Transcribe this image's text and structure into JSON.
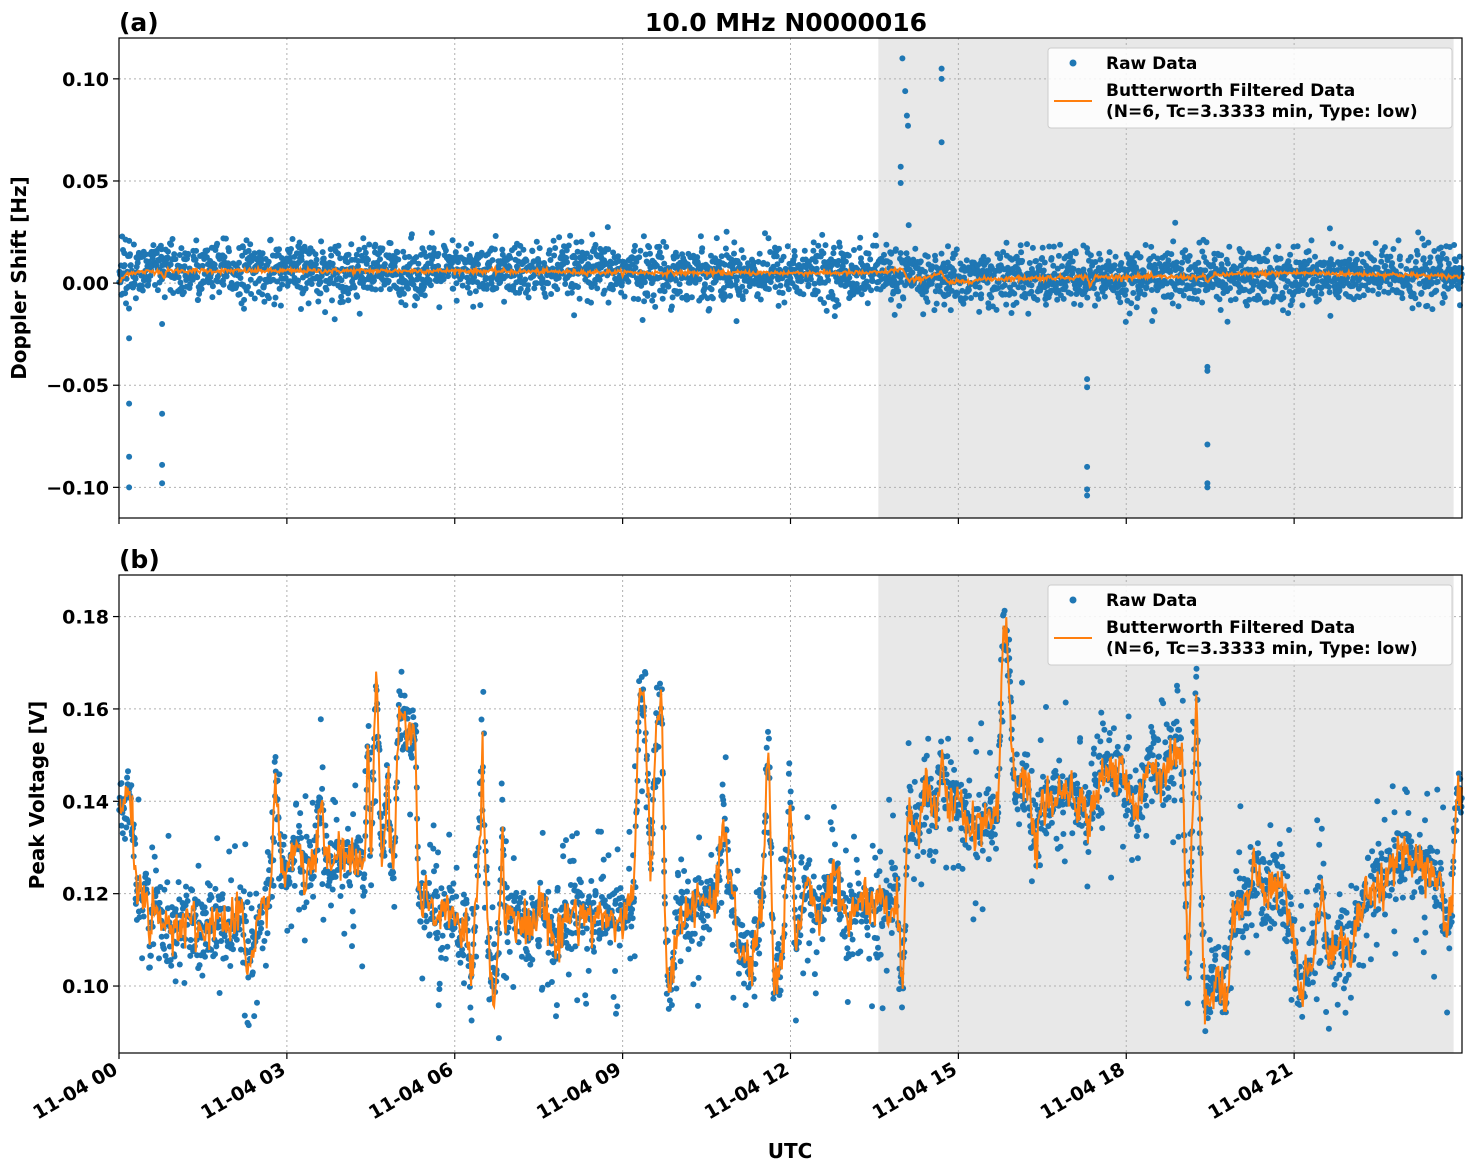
{
  "figure": {
    "title": "10.0 MHz N0000016",
    "xlabel": "UTC"
  },
  "colors": {
    "raw": "#1f77b4",
    "filtered": "#ff7f0e",
    "shade": "#e8e8e8",
    "grid": "#b0b0b0"
  },
  "legend": {
    "raw_label": "Raw Data",
    "filtered_line1": "Butterworth Filtered Data",
    "filtered_line2": "(N=6, Tc=3.3333 min, Type: low)"
  },
  "chart_data": [
    {
      "type": "scatter",
      "panel_label": "(a)",
      "ylabel": "Doppler Shift [Hz]",
      "xlim_hours": [
        0,
        24
      ],
      "ylim": [
        -0.115,
        0.12
      ],
      "yticks": [
        -0.1,
        -0.05,
        0.0,
        0.05,
        0.1
      ],
      "ytick_labels": [
        "−0.10",
        "−0.05",
        "0.00",
        "0.05",
        "0.10"
      ],
      "shaded_hours": [
        13.57,
        23.85
      ],
      "grid": true,
      "legend_position": "top-right",
      "series": [
        {
          "name": "Raw Data",
          "style": "points",
          "baseline": [
            [
              0,
              0.006
            ],
            [
              13.6,
              0.005
            ],
            [
              14.5,
              0.002
            ],
            [
              24,
              0.004
            ]
          ],
          "spread": 0.022,
          "outliers": [
            [
              0.18,
              -0.027
            ],
            [
              0.18,
              -0.059
            ],
            [
              0.18,
              -0.085
            ],
            [
              0.18,
              -0.1
            ],
            [
              0.77,
              -0.02
            ],
            [
              0.77,
              -0.064
            ],
            [
              0.77,
              -0.089
            ],
            [
              0.77,
              -0.098
            ],
            [
              14.0,
              0.11
            ],
            [
              14.05,
              0.094
            ],
            [
              14.08,
              0.082
            ],
            [
              14.1,
              0.077
            ],
            [
              13.97,
              0.057
            ],
            [
              13.97,
              0.049
            ],
            [
              14.7,
              0.105
            ],
            [
              14.7,
              0.1
            ],
            [
              14.7,
              0.069
            ],
            [
              17.3,
              -0.047
            ],
            [
              17.3,
              -0.051
            ],
            [
              17.3,
              -0.09
            ],
            [
              17.3,
              -0.101
            ],
            [
              17.3,
              -0.104
            ],
            [
              19.45,
              -0.041
            ],
            [
              19.45,
              -0.043
            ],
            [
              19.45,
              -0.079
            ],
            [
              19.45,
              -0.098
            ],
            [
              19.45,
              -0.1
            ]
          ]
        },
        {
          "name": "Butterworth Filtered Data (N=6, Tc=3.3333 min, Type: low)",
          "style": "line",
          "points": [
            [
              0,
              0.0
            ],
            [
              0.15,
              0.005
            ],
            [
              0.75,
              0.006
            ],
            [
              0.8,
              0.002
            ],
            [
              0.85,
              0.006
            ],
            [
              6,
              0.006
            ],
            [
              10,
              0.005
            ],
            [
              13.6,
              0.005
            ],
            [
              14.0,
              0.007
            ],
            [
              14.1,
              0.001
            ],
            [
              14.3,
              0.002
            ],
            [
              14.7,
              0.005
            ],
            [
              14.8,
              0.0
            ],
            [
              15.5,
              0.002
            ],
            [
              17.3,
              0.003
            ],
            [
              17.35,
              -0.001
            ],
            [
              17.45,
              0.003
            ],
            [
              19.4,
              0.003
            ],
            [
              19.45,
              0.0
            ],
            [
              19.55,
              0.004
            ],
            [
              21,
              0.005
            ],
            [
              23,
              0.004
            ],
            [
              24,
              0.003
            ]
          ]
        }
      ]
    },
    {
      "type": "scatter",
      "panel_label": "(b)",
      "ylabel": "Peak Voltage [V]",
      "xlim_hours": [
        0,
        24
      ],
      "ylim": [
        0.0855,
        0.189
      ],
      "yticks": [
        0.1,
        0.12,
        0.14,
        0.16,
        0.18
      ],
      "ytick_labels": [
        "0.10",
        "0.12",
        "0.14",
        "0.16",
        "0.18"
      ],
      "xticks_hours": [
        0,
        3,
        6,
        9,
        12,
        15,
        18,
        21
      ],
      "xtick_labels": [
        "11-04 00",
        "11-04 03",
        "11-04 06",
        "11-04 09",
        "11-04 12",
        "11-04 15",
        "11-04 18",
        "11-04 21"
      ],
      "shaded_hours": [
        13.57,
        23.85
      ],
      "grid": true,
      "legend_position": "top-right",
      "series": [
        {
          "name": "Raw Data",
          "style": "points",
          "spread": 0.012
        },
        {
          "name": "Butterworth Filtered Data (N=6, Tc=3.3333 min, Type: low)",
          "style": "line",
          "points": [
            [
              0,
              0.137
            ],
            [
              0.1,
              0.14
            ],
            [
              0.2,
              0.142
            ],
            [
              0.25,
              0.135
            ],
            [
              0.3,
              0.122
            ],
            [
              0.45,
              0.118
            ],
            [
              0.5,
              0.122
            ],
            [
              0.55,
              0.105
            ],
            [
              0.6,
              0.12
            ],
            [
              0.75,
              0.115
            ],
            [
              0.85,
              0.11
            ],
            [
              1.0,
              0.113
            ],
            [
              1.3,
              0.115
            ],
            [
              1.5,
              0.11
            ],
            [
              1.7,
              0.116
            ],
            [
              2.0,
              0.112
            ],
            [
              2.2,
              0.115
            ],
            [
              2.3,
              0.103
            ],
            [
              2.5,
              0.115
            ],
            [
              2.7,
              0.12
            ],
            [
              2.8,
              0.145
            ],
            [
              2.9,
              0.126
            ],
            [
              3.0,
              0.123
            ],
            [
              3.2,
              0.133
            ],
            [
              3.3,
              0.122
            ],
            [
              3.5,
              0.128
            ],
            [
              3.6,
              0.14
            ],
            [
              3.7,
              0.126
            ],
            [
              4.0,
              0.129
            ],
            [
              4.2,
              0.126
            ],
            [
              4.4,
              0.127
            ],
            [
              4.45,
              0.16
            ],
            [
              4.5,
              0.126
            ],
            [
              4.6,
              0.168
            ],
            [
              4.7,
              0.126
            ],
            [
              4.8,
              0.145
            ],
            [
              4.9,
              0.123
            ],
            [
              5.0,
              0.16
            ],
            [
              5.15,
              0.155
            ],
            [
              5.3,
              0.153
            ],
            [
              5.35,
              0.12
            ],
            [
              5.5,
              0.118
            ],
            [
              5.7,
              0.114
            ],
            [
              6.0,
              0.116
            ],
            [
              6.1,
              0.11
            ],
            [
              6.2,
              0.115
            ],
            [
              6.3,
              0.1
            ],
            [
              6.35,
              0.113
            ],
            [
              6.5,
              0.145
            ],
            [
              6.6,
              0.11
            ],
            [
              6.7,
              0.097
            ],
            [
              6.8,
              0.113
            ],
            [
              6.85,
              0.137
            ],
            [
              6.9,
              0.112
            ],
            [
              7.0,
              0.118
            ],
            [
              7.3,
              0.112
            ],
            [
              7.6,
              0.118
            ],
            [
              7.8,
              0.108
            ],
            [
              8.0,
              0.116
            ],
            [
              8.5,
              0.115
            ],
            [
              9.0,
              0.114
            ],
            [
              9.2,
              0.12
            ],
            [
              9.3,
              0.163
            ],
            [
              9.4,
              0.16
            ],
            [
              9.5,
              0.125
            ],
            [
              9.6,
              0.155
            ],
            [
              9.7,
              0.16
            ],
            [
              9.75,
              0.12
            ],
            [
              9.8,
              0.097
            ],
            [
              10.0,
              0.115
            ],
            [
              10.4,
              0.118
            ],
            [
              10.7,
              0.12
            ],
            [
              10.8,
              0.138
            ],
            [
              10.9,
              0.125
            ],
            [
              11.1,
              0.106
            ],
            [
              11.3,
              0.105
            ],
            [
              11.5,
              0.118
            ],
            [
              11.6,
              0.155
            ],
            [
              11.7,
              0.1
            ],
            [
              11.85,
              0.106
            ],
            [
              12.0,
              0.14
            ],
            [
              12.1,
              0.108
            ],
            [
              12.3,
              0.124
            ],
            [
              12.5,
              0.113
            ],
            [
              12.8,
              0.125
            ],
            [
              13.0,
              0.112
            ],
            [
              13.3,
              0.12
            ],
            [
              13.5,
              0.115
            ],
            [
              13.7,
              0.12
            ],
            [
              13.8,
              0.115
            ],
            [
              13.9,
              0.121
            ],
            [
              14.0,
              0.097
            ],
            [
              14.1,
              0.138
            ],
            [
              14.3,
              0.134
            ],
            [
              14.4,
              0.145
            ],
            [
              14.6,
              0.138
            ],
            [
              14.7,
              0.148
            ],
            [
              14.8,
              0.138
            ],
            [
              15.0,
              0.14
            ],
            [
              15.3,
              0.133
            ],
            [
              15.5,
              0.137
            ],
            [
              15.7,
              0.136
            ],
            [
              15.8,
              0.178
            ],
            [
              15.9,
              0.17
            ],
            [
              16.0,
              0.142
            ],
            [
              16.2,
              0.145
            ],
            [
              16.4,
              0.13
            ],
            [
              16.5,
              0.14
            ],
            [
              16.8,
              0.14
            ],
            [
              17.0,
              0.142
            ],
            [
              17.3,
              0.136
            ],
            [
              17.6,
              0.147
            ],
            [
              17.9,
              0.146
            ],
            [
              18.2,
              0.137
            ],
            [
              18.4,
              0.15
            ],
            [
              18.6,
              0.145
            ],
            [
              18.8,
              0.15
            ],
            [
              19.0,
              0.152
            ],
            [
              19.1,
              0.1
            ],
            [
              19.25,
              0.165
            ],
            [
              19.4,
              0.095
            ],
            [
              19.6,
              0.103
            ],
            [
              19.7,
              0.1
            ],
            [
              19.8,
              0.097
            ],
            [
              19.9,
              0.115
            ],
            [
              20.1,
              0.118
            ],
            [
              20.2,
              0.12
            ],
            [
              20.3,
              0.125
            ],
            [
              20.5,
              0.12
            ],
            [
              20.7,
              0.122
            ],
            [
              20.9,
              0.118
            ],
            [
              21.1,
              0.1
            ],
            [
              21.3,
              0.105
            ],
            [
              21.5,
              0.12
            ],
            [
              21.6,
              0.107
            ],
            [
              21.8,
              0.11
            ],
            [
              22.0,
              0.107
            ],
            [
              22.2,
              0.118
            ],
            [
              22.5,
              0.122
            ],
            [
              22.8,
              0.125
            ],
            [
              23.0,
              0.13
            ],
            [
              23.2,
              0.127
            ],
            [
              23.4,
              0.124
            ],
            [
              23.6,
              0.125
            ],
            [
              23.7,
              0.113
            ],
            [
              23.8,
              0.115
            ],
            [
              23.9,
              0.14
            ],
            [
              24.0,
              0.142
            ]
          ]
        }
      ]
    }
  ]
}
